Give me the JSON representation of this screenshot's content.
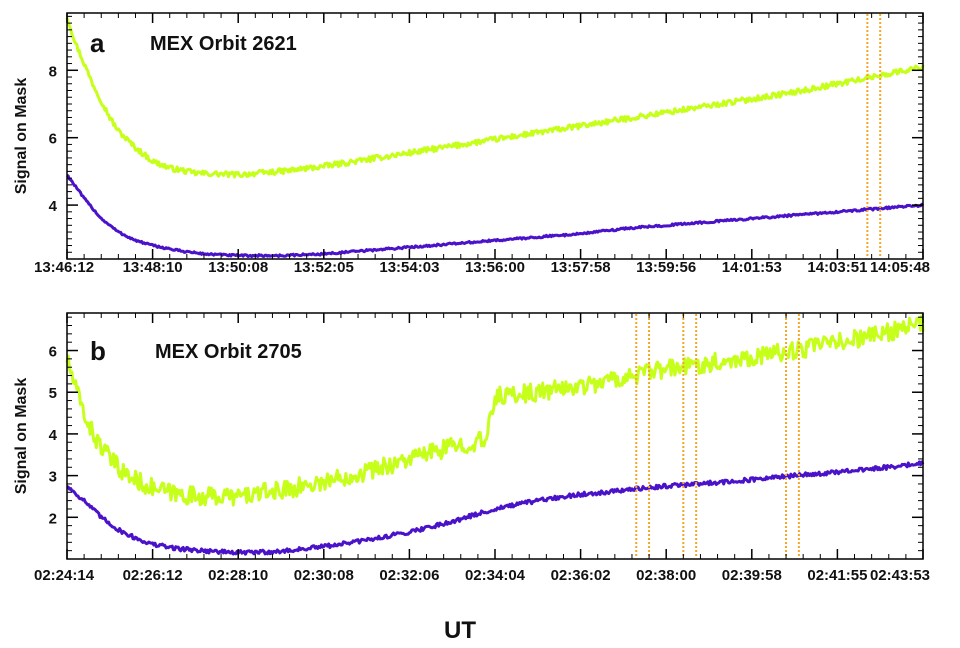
{
  "figure": {
    "xlabel": "UT",
    "colors": {
      "upper_series": "#c6ff1a",
      "lower_series": "#4a12c9",
      "marker_lines": "#f5a623",
      "axes": "#000000"
    }
  },
  "chart_data": [
    {
      "type": "line",
      "panel_label": "a",
      "title": "MEX Orbit 2621",
      "ylabel": "Signal on Mask",
      "ylim": [
        2.4,
        9.7
      ],
      "yticks": [
        4,
        6,
        8
      ],
      "ytick_labels": [
        "4",
        "6",
        "8"
      ],
      "xtick_labels": [
        "13:46:12",
        "13:48:10",
        "13:50:08",
        "13:52:05",
        "13:54:03",
        "13:56:00",
        "13:57:58",
        "13:59:56",
        "14:01:53",
        "14:03:51",
        "14:05:48"
      ],
      "grid": false,
      "series": [
        {
          "noise": 0.08,
          "x": [
            0,
            0.1,
            0.2,
            0.3,
            0.4,
            0.5,
            0.6,
            0.8,
            1.0,
            1.2,
            1.5,
            2.0,
            2.5,
            3.0,
            3.5,
            4.0,
            4.5,
            5.0,
            5.5,
            6.0,
            6.5,
            7.0,
            7.5,
            8.0,
            8.5,
            9.0,
            9.5,
            10.0
          ],
          "values": [
            9.6,
            8.8,
            8.2,
            7.6,
            7.1,
            6.6,
            6.2,
            5.7,
            5.3,
            5.1,
            4.95,
            4.9,
            5.0,
            5.15,
            5.35,
            5.55,
            5.75,
            5.95,
            6.15,
            6.35,
            6.55,
            6.75,
            6.95,
            7.15,
            7.35,
            7.6,
            7.85,
            8.1
          ]
        },
        {
          "noise": 0.03,
          "x": [
            0,
            0.2,
            0.4,
            0.6,
            0.8,
            1.0,
            1.3,
            1.6,
            2.0,
            2.5,
            3.0,
            3.5,
            4.0,
            4.5,
            5.0,
            5.5,
            6.0,
            6.5,
            7.0,
            7.5,
            8.0,
            8.5,
            9.0,
            9.5,
            10.0
          ],
          "values": [
            4.9,
            4.2,
            3.6,
            3.2,
            2.95,
            2.8,
            2.65,
            2.55,
            2.5,
            2.5,
            2.55,
            2.65,
            2.75,
            2.85,
            2.95,
            3.05,
            3.15,
            3.3,
            3.4,
            3.5,
            3.6,
            3.7,
            3.8,
            3.9,
            4.0
          ]
        }
      ],
      "markers": [
        9.35,
        9.5
      ]
    },
    {
      "type": "line",
      "panel_label": "b",
      "title": "MEX Orbit 2705",
      "ylabel": "Signal on Mask",
      "ylim": [
        1.0,
        6.9
      ],
      "yticks": [
        2,
        3,
        4,
        5,
        6
      ],
      "ytick_labels": [
        "2",
        "3",
        "4",
        "5",
        "6"
      ],
      "xtick_labels": [
        "02:24:14",
        "02:26:12",
        "02:28:10",
        "02:30:08",
        "02:32:06",
        "02:34:04",
        "02:36:02",
        "02:38:00",
        "02:39:58",
        "02:41:55",
        "02:43:53"
      ],
      "grid": false,
      "series": [
        {
          "noise": 0.22,
          "x": [
            0,
            0.1,
            0.2,
            0.3,
            0.5,
            0.7,
            1.0,
            1.3,
            1.6,
            2.0,
            2.5,
            3.0,
            3.5,
            4.0,
            4.5,
            4.9,
            5.0,
            5.5,
            6.0,
            6.5,
            7.0,
            7.5,
            8.0,
            8.5,
            9.0,
            9.5,
            10.0
          ],
          "values": [
            5.8,
            5.1,
            4.5,
            4.0,
            3.4,
            3.0,
            2.7,
            2.55,
            2.5,
            2.5,
            2.65,
            2.85,
            3.1,
            3.4,
            3.7,
            3.85,
            4.9,
            5.0,
            5.15,
            5.35,
            5.55,
            5.7,
            5.85,
            6.0,
            6.2,
            6.4,
            6.65
          ]
        },
        {
          "noise": 0.05,
          "x": [
            0,
            0.2,
            0.4,
            0.6,
            0.8,
            1.0,
            1.3,
            1.6,
            2.0,
            2.5,
            3.0,
            3.5,
            4.0,
            4.5,
            5.0,
            5.5,
            6.0,
            6.5,
            7.0,
            7.5,
            8.0,
            8.5,
            9.0,
            9.5,
            10.0
          ],
          "values": [
            2.75,
            2.4,
            2.0,
            1.7,
            1.5,
            1.35,
            1.25,
            1.2,
            1.15,
            1.18,
            1.3,
            1.45,
            1.65,
            1.9,
            2.2,
            2.4,
            2.55,
            2.65,
            2.75,
            2.82,
            2.9,
            3.0,
            3.08,
            3.18,
            3.3
          ]
        }
      ],
      "markers": [
        6.65,
        6.8,
        7.2,
        7.35,
        8.4,
        8.55
      ]
    }
  ]
}
